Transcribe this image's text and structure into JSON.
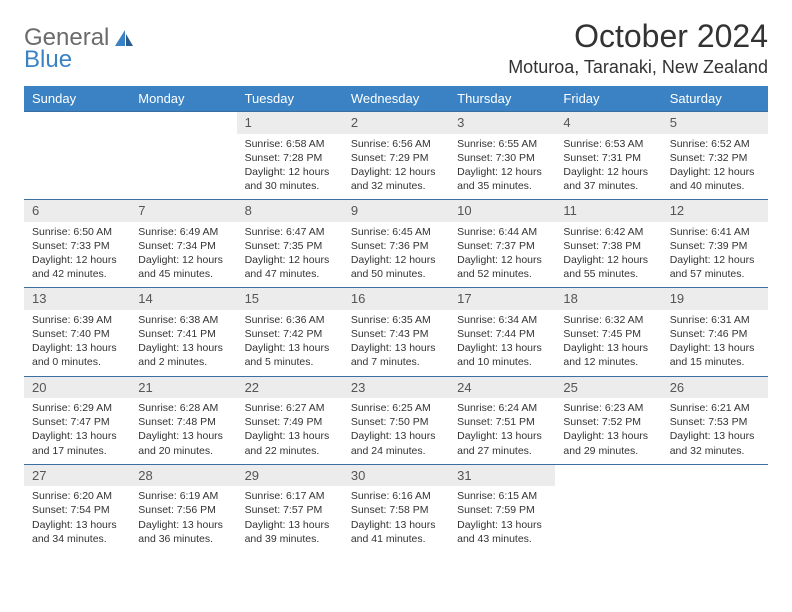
{
  "logo": {
    "text_gray": "General",
    "text_blue": "Blue"
  },
  "title": "October 2024",
  "location": "Moturoa, Taranaki, New Zealand",
  "colors": {
    "header_bg": "#3b82c4",
    "header_text": "#ffffff",
    "daynum_bg": "#ececec",
    "daynum_text": "#555555",
    "body_text": "#333333",
    "row_border": "#3b6fa0",
    "logo_gray": "#6b6b6b",
    "logo_blue": "#3b82c4",
    "page_bg": "#ffffff"
  },
  "day_headers": [
    "Sunday",
    "Monday",
    "Tuesday",
    "Wednesday",
    "Thursday",
    "Friday",
    "Saturday"
  ],
  "weeks": [
    {
      "nums": [
        "",
        "",
        "1",
        "2",
        "3",
        "4",
        "5"
      ],
      "cells": [
        null,
        null,
        {
          "sunrise": "Sunrise: 6:58 AM",
          "sunset": "Sunset: 7:28 PM",
          "day1": "Daylight: 12 hours",
          "day2": "and 30 minutes."
        },
        {
          "sunrise": "Sunrise: 6:56 AM",
          "sunset": "Sunset: 7:29 PM",
          "day1": "Daylight: 12 hours",
          "day2": "and 32 minutes."
        },
        {
          "sunrise": "Sunrise: 6:55 AM",
          "sunset": "Sunset: 7:30 PM",
          "day1": "Daylight: 12 hours",
          "day2": "and 35 minutes."
        },
        {
          "sunrise": "Sunrise: 6:53 AM",
          "sunset": "Sunset: 7:31 PM",
          "day1": "Daylight: 12 hours",
          "day2": "and 37 minutes."
        },
        {
          "sunrise": "Sunrise: 6:52 AM",
          "sunset": "Sunset: 7:32 PM",
          "day1": "Daylight: 12 hours",
          "day2": "and 40 minutes."
        }
      ]
    },
    {
      "nums": [
        "6",
        "7",
        "8",
        "9",
        "10",
        "11",
        "12"
      ],
      "cells": [
        {
          "sunrise": "Sunrise: 6:50 AM",
          "sunset": "Sunset: 7:33 PM",
          "day1": "Daylight: 12 hours",
          "day2": "and 42 minutes."
        },
        {
          "sunrise": "Sunrise: 6:49 AM",
          "sunset": "Sunset: 7:34 PM",
          "day1": "Daylight: 12 hours",
          "day2": "and 45 minutes."
        },
        {
          "sunrise": "Sunrise: 6:47 AM",
          "sunset": "Sunset: 7:35 PM",
          "day1": "Daylight: 12 hours",
          "day2": "and 47 minutes."
        },
        {
          "sunrise": "Sunrise: 6:45 AM",
          "sunset": "Sunset: 7:36 PM",
          "day1": "Daylight: 12 hours",
          "day2": "and 50 minutes."
        },
        {
          "sunrise": "Sunrise: 6:44 AM",
          "sunset": "Sunset: 7:37 PM",
          "day1": "Daylight: 12 hours",
          "day2": "and 52 minutes."
        },
        {
          "sunrise": "Sunrise: 6:42 AM",
          "sunset": "Sunset: 7:38 PM",
          "day1": "Daylight: 12 hours",
          "day2": "and 55 minutes."
        },
        {
          "sunrise": "Sunrise: 6:41 AM",
          "sunset": "Sunset: 7:39 PM",
          "day1": "Daylight: 12 hours",
          "day2": "and 57 minutes."
        }
      ]
    },
    {
      "nums": [
        "13",
        "14",
        "15",
        "16",
        "17",
        "18",
        "19"
      ],
      "cells": [
        {
          "sunrise": "Sunrise: 6:39 AM",
          "sunset": "Sunset: 7:40 PM",
          "day1": "Daylight: 13 hours",
          "day2": "and 0 minutes."
        },
        {
          "sunrise": "Sunrise: 6:38 AM",
          "sunset": "Sunset: 7:41 PM",
          "day1": "Daylight: 13 hours",
          "day2": "and 2 minutes."
        },
        {
          "sunrise": "Sunrise: 6:36 AM",
          "sunset": "Sunset: 7:42 PM",
          "day1": "Daylight: 13 hours",
          "day2": "and 5 minutes."
        },
        {
          "sunrise": "Sunrise: 6:35 AM",
          "sunset": "Sunset: 7:43 PM",
          "day1": "Daylight: 13 hours",
          "day2": "and 7 minutes."
        },
        {
          "sunrise": "Sunrise: 6:34 AM",
          "sunset": "Sunset: 7:44 PM",
          "day1": "Daylight: 13 hours",
          "day2": "and 10 minutes."
        },
        {
          "sunrise": "Sunrise: 6:32 AM",
          "sunset": "Sunset: 7:45 PM",
          "day1": "Daylight: 13 hours",
          "day2": "and 12 minutes."
        },
        {
          "sunrise": "Sunrise: 6:31 AM",
          "sunset": "Sunset: 7:46 PM",
          "day1": "Daylight: 13 hours",
          "day2": "and 15 minutes."
        }
      ]
    },
    {
      "nums": [
        "20",
        "21",
        "22",
        "23",
        "24",
        "25",
        "26"
      ],
      "cells": [
        {
          "sunrise": "Sunrise: 6:29 AM",
          "sunset": "Sunset: 7:47 PM",
          "day1": "Daylight: 13 hours",
          "day2": "and 17 minutes."
        },
        {
          "sunrise": "Sunrise: 6:28 AM",
          "sunset": "Sunset: 7:48 PM",
          "day1": "Daylight: 13 hours",
          "day2": "and 20 minutes."
        },
        {
          "sunrise": "Sunrise: 6:27 AM",
          "sunset": "Sunset: 7:49 PM",
          "day1": "Daylight: 13 hours",
          "day2": "and 22 minutes."
        },
        {
          "sunrise": "Sunrise: 6:25 AM",
          "sunset": "Sunset: 7:50 PM",
          "day1": "Daylight: 13 hours",
          "day2": "and 24 minutes."
        },
        {
          "sunrise": "Sunrise: 6:24 AM",
          "sunset": "Sunset: 7:51 PM",
          "day1": "Daylight: 13 hours",
          "day2": "and 27 minutes."
        },
        {
          "sunrise": "Sunrise: 6:23 AM",
          "sunset": "Sunset: 7:52 PM",
          "day1": "Daylight: 13 hours",
          "day2": "and 29 minutes."
        },
        {
          "sunrise": "Sunrise: 6:21 AM",
          "sunset": "Sunset: 7:53 PM",
          "day1": "Daylight: 13 hours",
          "day2": "and 32 minutes."
        }
      ]
    },
    {
      "nums": [
        "27",
        "28",
        "29",
        "30",
        "31",
        "",
        ""
      ],
      "cells": [
        {
          "sunrise": "Sunrise: 6:20 AM",
          "sunset": "Sunset: 7:54 PM",
          "day1": "Daylight: 13 hours",
          "day2": "and 34 minutes."
        },
        {
          "sunrise": "Sunrise: 6:19 AM",
          "sunset": "Sunset: 7:56 PM",
          "day1": "Daylight: 13 hours",
          "day2": "and 36 minutes."
        },
        {
          "sunrise": "Sunrise: 6:17 AM",
          "sunset": "Sunset: 7:57 PM",
          "day1": "Daylight: 13 hours",
          "day2": "and 39 minutes."
        },
        {
          "sunrise": "Sunrise: 6:16 AM",
          "sunset": "Sunset: 7:58 PM",
          "day1": "Daylight: 13 hours",
          "day2": "and 41 minutes."
        },
        {
          "sunrise": "Sunrise: 6:15 AM",
          "sunset": "Sunset: 7:59 PM",
          "day1": "Daylight: 13 hours",
          "day2": "and 43 minutes."
        },
        null,
        null
      ]
    }
  ]
}
